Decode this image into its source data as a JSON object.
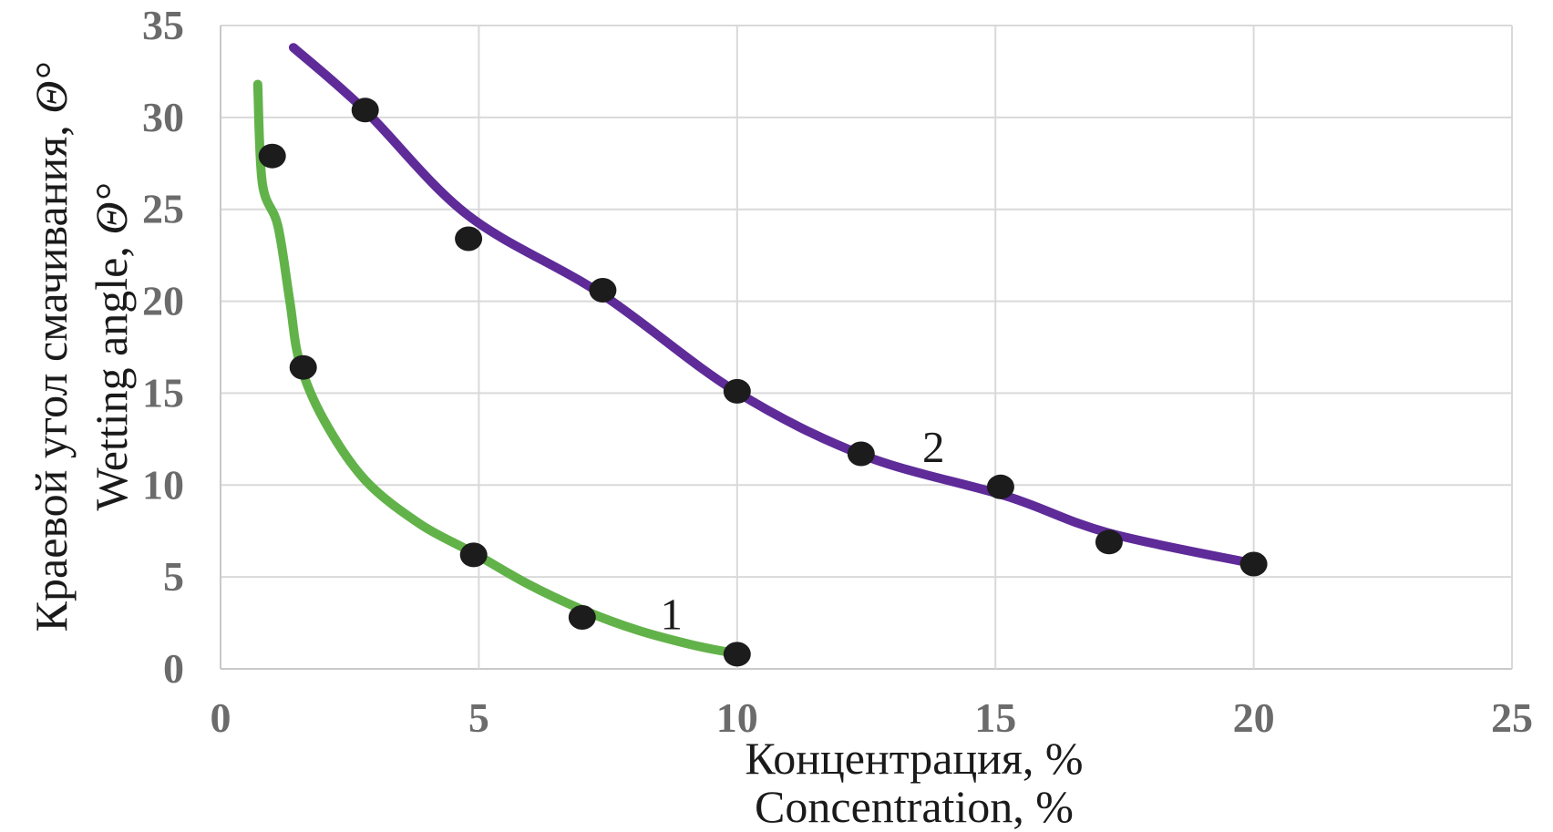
{
  "page": {
    "background": "#ffffff"
  },
  "chart_data": {
    "type": "scatter",
    "title": "",
    "x_axis": {
      "label_ru": "Концентрация, %",
      "label_en": "Concentration, %",
      "lim": [
        0,
        25
      ],
      "ticks": [
        0,
        5,
        10,
        15,
        20,
        25
      ]
    },
    "y_axis": {
      "label_ru_prefix": "Краевой угол смачивания, ",
      "label_en_prefix": "Wetting angle, ",
      "theta": "Θ°",
      "lim": [
        0,
        35
      ],
      "ticks": [
        0,
        5,
        10,
        15,
        20,
        25,
        30,
        35
      ]
    },
    "grid": true,
    "legend_position": "none",
    "colors": {
      "grid": "#d9d9d9",
      "axis": "#c9c9c9",
      "tick_text": "#6b6b6b",
      "label_text": "#1a1a1a",
      "marker": "#1c1c1c"
    },
    "series": [
      {
        "name": "1",
        "description": "lower curve, green trend line",
        "line_color": "#62B24A",
        "points": [
          [
            1.0,
            27.9
          ],
          [
            1.6,
            16.4
          ],
          [
            4.9,
            6.2
          ],
          [
            7.0,
            2.8
          ],
          [
            10.0,
            0.8
          ]
        ],
        "trend": [
          [
            0.72,
            31.8
          ],
          [
            0.81,
            26.4
          ],
          [
            1.11,
            24.1
          ],
          [
            1.34,
            20.0
          ],
          [
            1.53,
            16.7
          ],
          [
            1.99,
            13.6
          ],
          [
            2.79,
            10.3
          ],
          [
            3.85,
            7.9
          ],
          [
            4.9,
            6.3
          ],
          [
            5.96,
            4.6
          ],
          [
            7.02,
            3.2
          ],
          [
            8.08,
            2.1
          ],
          [
            9.14,
            1.3
          ],
          [
            9.85,
            0.9
          ]
        ],
        "label_pos": [
          8.73,
          3.0
        ]
      },
      {
        "name": "2",
        "description": "upper curve, purple trend line",
        "line_color": "#5E2B99",
        "points": [
          [
            2.8,
            30.4
          ],
          [
            4.8,
            23.4
          ],
          [
            7.4,
            20.6
          ],
          [
            10.0,
            15.1
          ],
          [
            12.4,
            11.7
          ],
          [
            15.1,
            9.9
          ],
          [
            17.2,
            6.9
          ],
          [
            20.0,
            5.7
          ]
        ],
        "trend": [
          [
            1.41,
            33.8
          ],
          [
            2.79,
            30.4
          ],
          [
            4.78,
            24.7
          ],
          [
            7.37,
            20.4
          ],
          [
            9.97,
            15.1
          ],
          [
            12.46,
            11.6
          ],
          [
            15.21,
            9.4
          ],
          [
            17.18,
            7.4
          ],
          [
            19.97,
            5.74
          ]
        ],
        "label_pos": [
          13.8,
          12.1
        ]
      }
    ]
  }
}
